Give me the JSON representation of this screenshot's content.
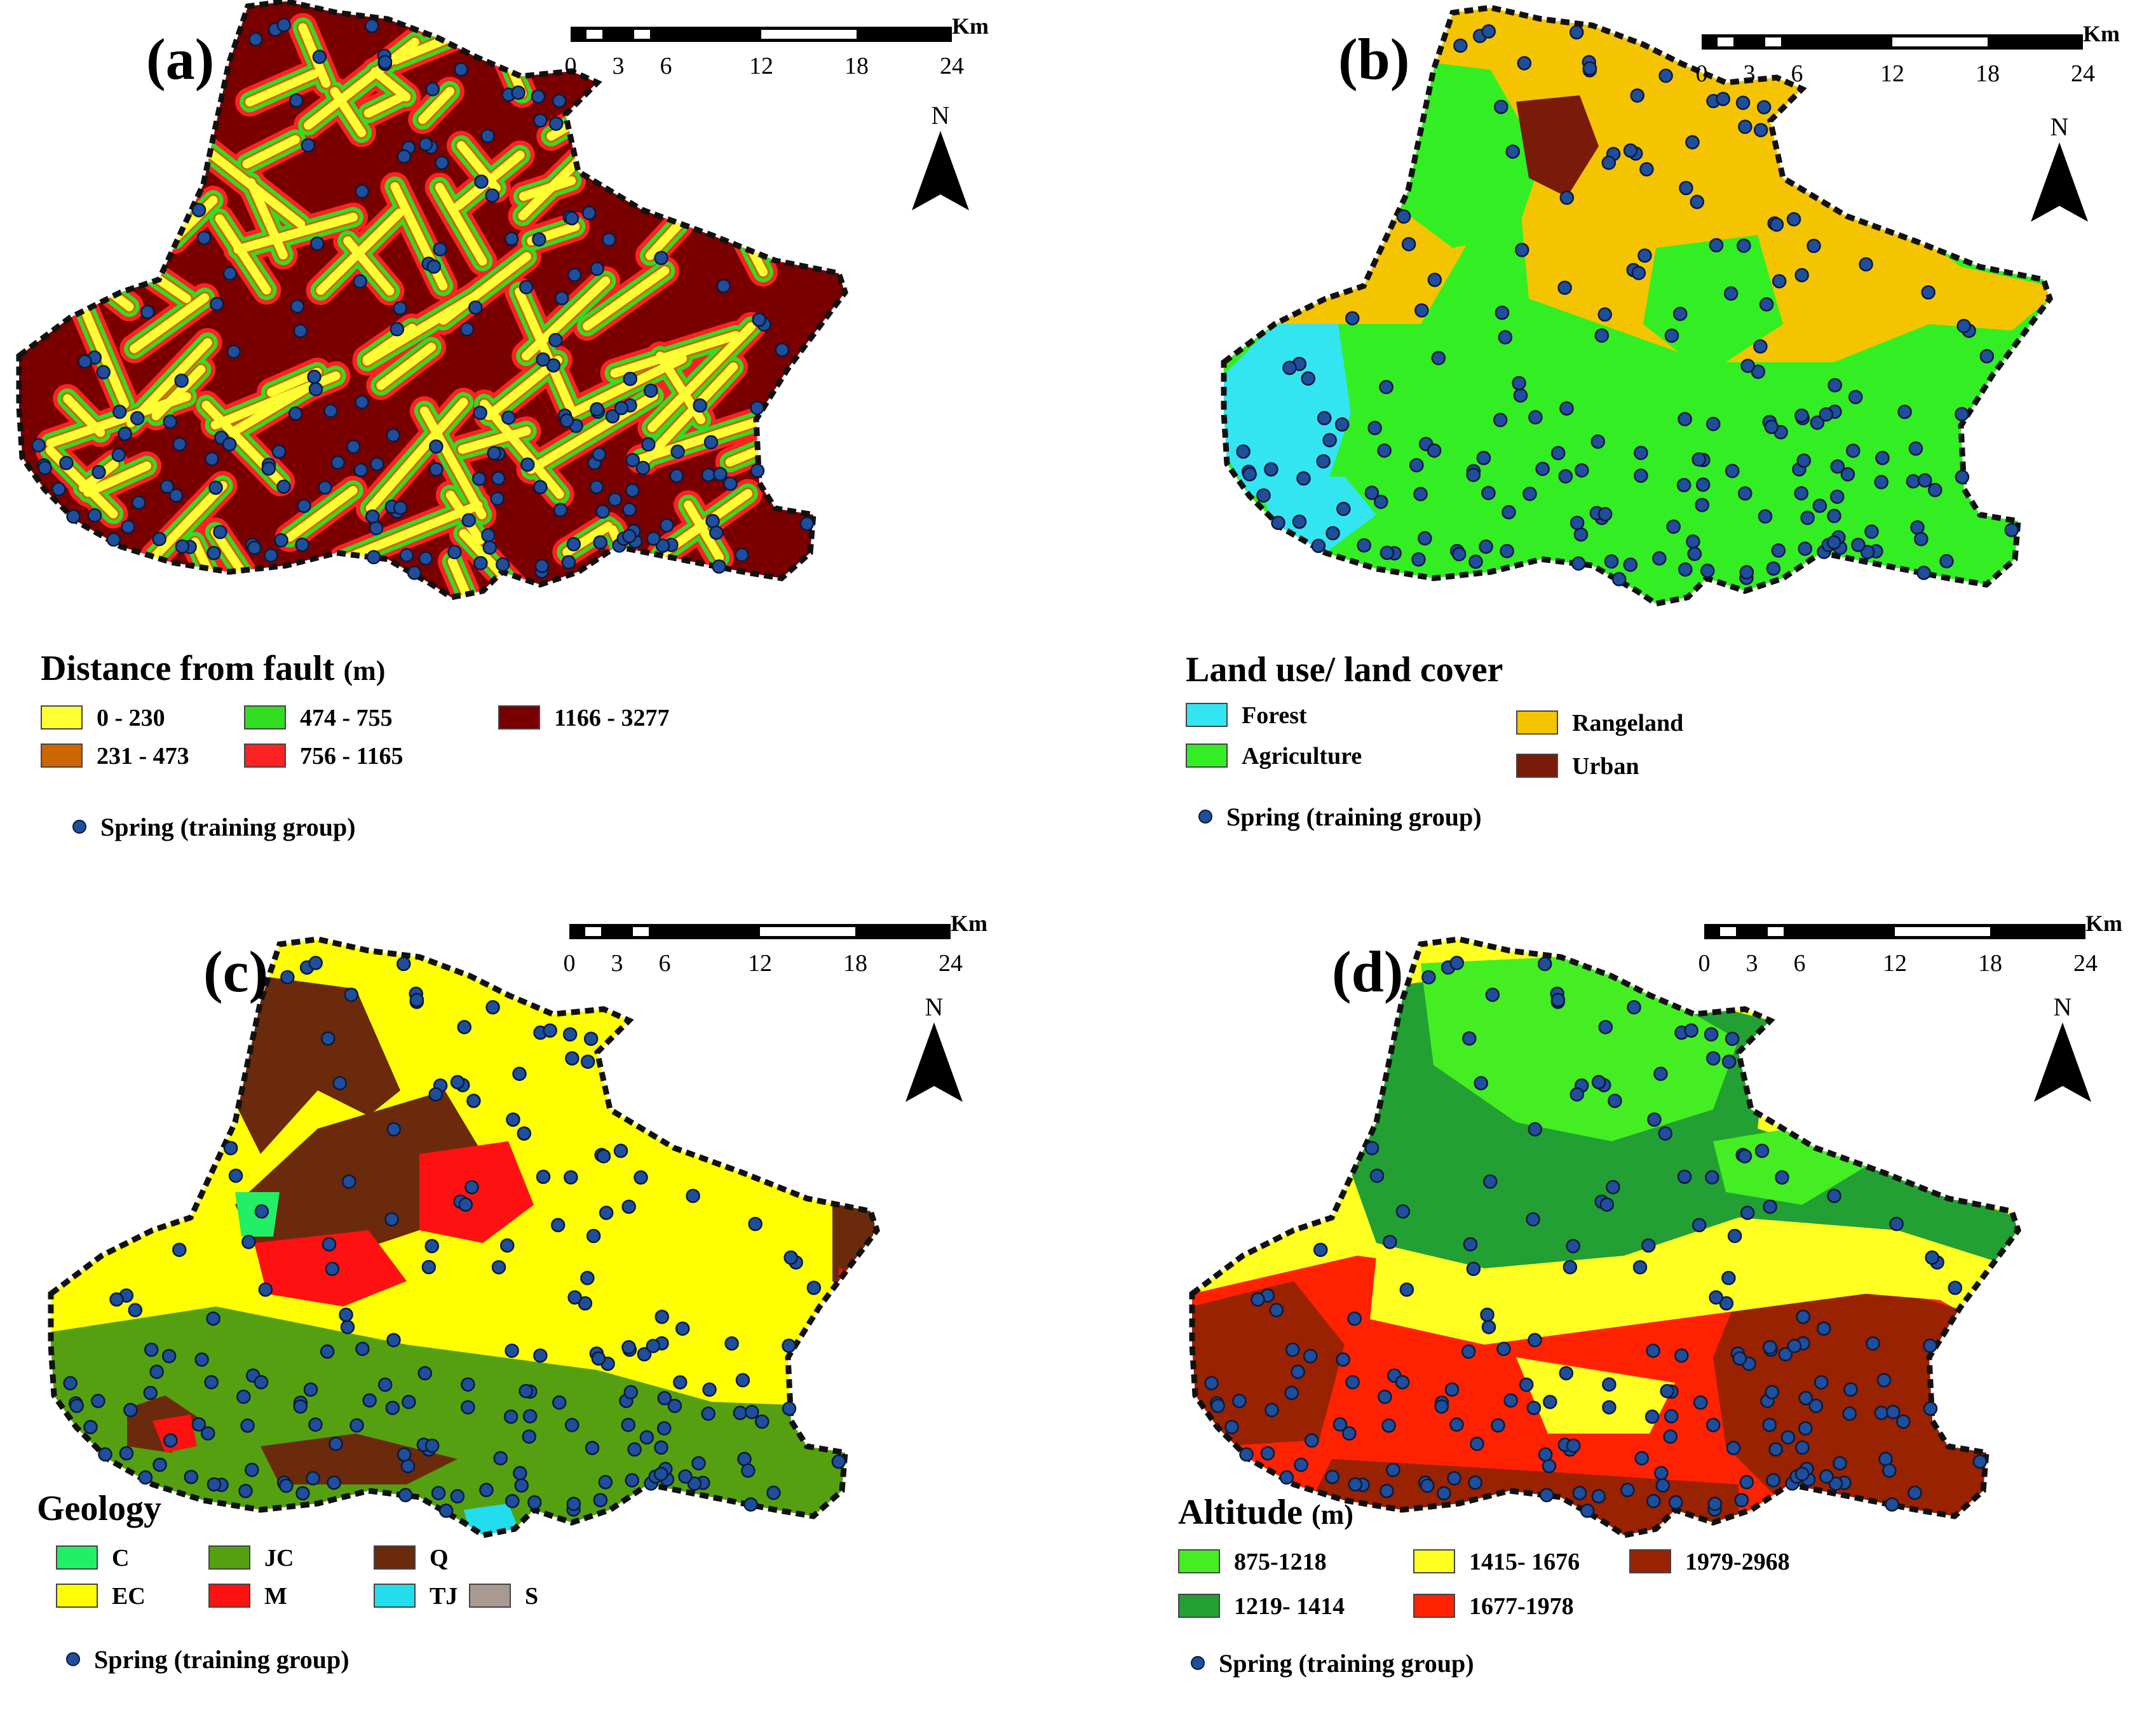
{
  "colors": {
    "boundary": "#111111",
    "spring_fill": "#1f4e9c",
    "spring_stroke": "#0a1a3a"
  },
  "scalebar": {
    "ticks": [
      "0",
      "3",
      "6",
      "12",
      "18",
      "24"
    ],
    "unit": "Km"
  },
  "north_label": "N",
  "spring_label": "Spring (training group)",
  "panels": [
    {
      "label": "(a)",
      "legend_title": "Distance from fault",
      "legend_unit": "(m)",
      "base_color": "#7a0000",
      "classes": [
        {
          "label": "0 - 230",
          "color": "#ffff33"
        },
        {
          "label": "231 - 473",
          "color": "#cc6600"
        },
        {
          "label": "474 - 755",
          "color": "#33dd22"
        },
        {
          "label": "756 - 1165",
          "color": "#ff2222"
        },
        {
          "label": "1166 - 3277",
          "color": "#7a0000"
        }
      ]
    },
    {
      "label": "(b)",
      "legend_title": "Land use/ land cover",
      "legend_unit": "",
      "base_color": "#f5c400",
      "classes": [
        {
          "label": "Forest",
          "color": "#33e5f0"
        },
        {
          "label": "Agriculture",
          "color": "#33ee22"
        },
        {
          "label": "Rangeland",
          "color": "#f5c400"
        },
        {
          "label": "Urban",
          "color": "#7a1a08"
        }
      ]
    },
    {
      "label": "(c)",
      "legend_title": "Geology",
      "legend_unit": "",
      "base_color": "#ffff00",
      "classes": [
        {
          "label": "C",
          "color": "#22ee66"
        },
        {
          "label": "EC",
          "color": "#ffff00"
        },
        {
          "label": "JC",
          "color": "#55a010"
        },
        {
          "label": "M",
          "color": "#ff1111"
        },
        {
          "label": "Q",
          "color": "#6b2a0c"
        },
        {
          "label": "TJ",
          "color": "#22ddee"
        },
        {
          "label": "S",
          "color": "#a89a90"
        }
      ]
    },
    {
      "label": "(d)",
      "legend_title": "Altitude",
      "legend_unit": "(m)",
      "base_color": "#ffff22",
      "classes": [
        {
          "label": "875-1218",
          "color": "#44ee22"
        },
        {
          "label": "1219- 1414",
          "color": "#22a033"
        },
        {
          "label": "1415- 1676",
          "color": "#ffff22"
        },
        {
          "label": "1677-1978",
          "color": "#ff2200"
        },
        {
          "label": "1979-2968",
          "color": "#992200"
        }
      ]
    }
  ]
}
